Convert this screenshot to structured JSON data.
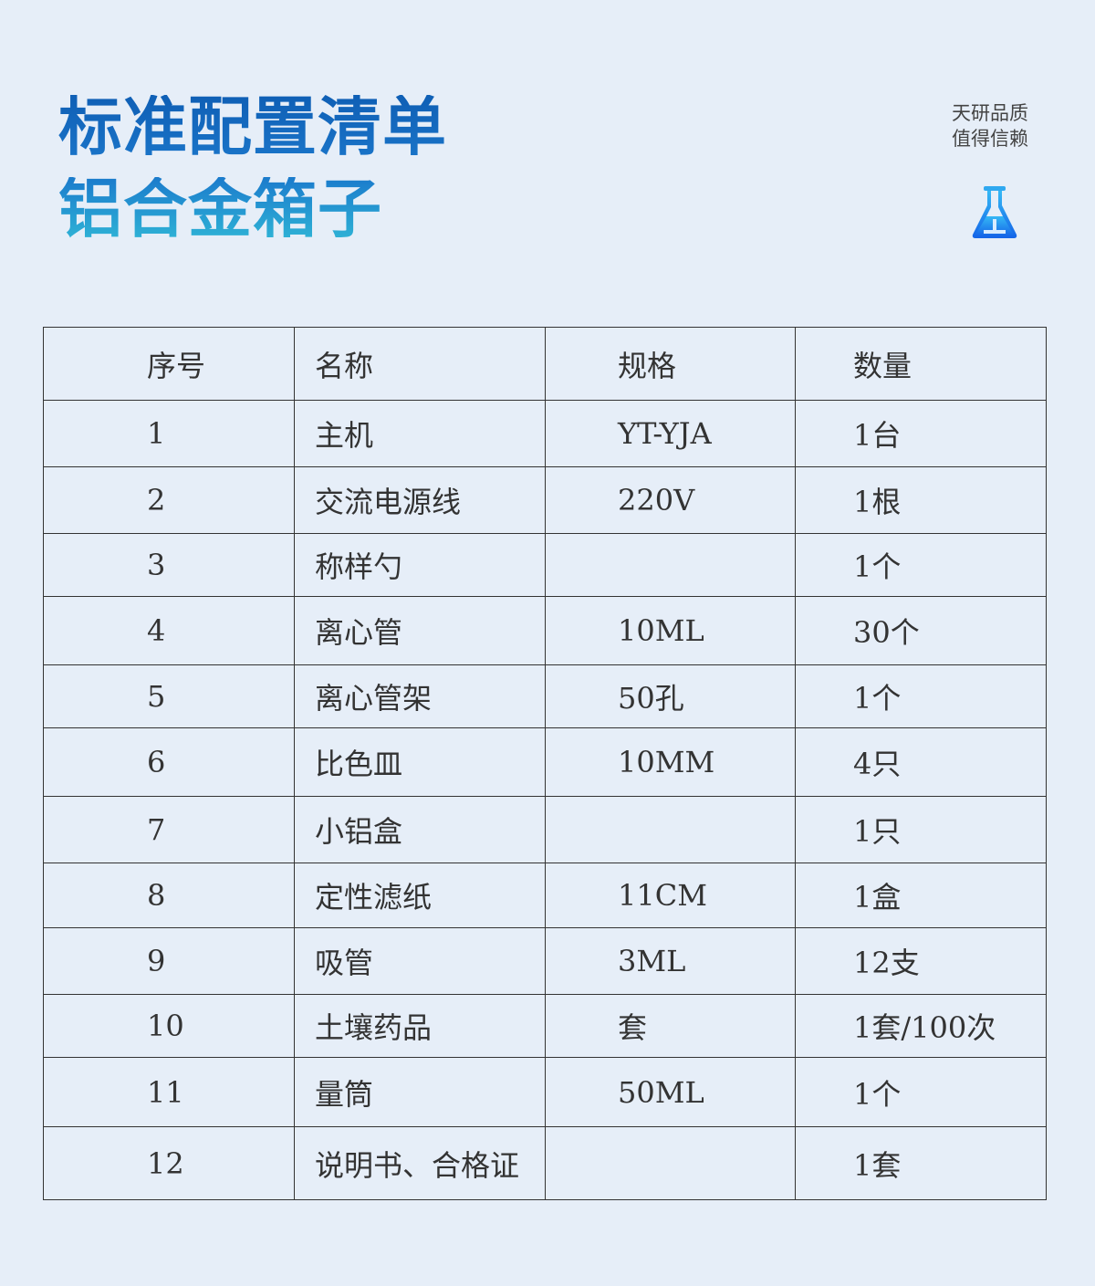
{
  "title": {
    "line1": "标准配置清单",
    "line2": "铝合金箱子"
  },
  "slogan": {
    "line1": "天研品质",
    "line2": "值得信赖"
  },
  "icon": "flask-icon",
  "colors": {
    "background": "#e6eef8",
    "title_top": "#0f5fb5",
    "title_bottom": "#2fb3d6",
    "icon": "#1e88f0"
  },
  "table": {
    "headers": [
      "序号",
      "名称",
      "规格",
      "数量"
    ],
    "rows": [
      [
        "1",
        "主机",
        "YT-YJA",
        "1台"
      ],
      [
        "2",
        "交流电源线",
        "220V",
        "1根"
      ],
      [
        "3",
        "称样勺",
        "",
        "1个"
      ],
      [
        "4",
        "离心管",
        "10ML",
        "30个"
      ],
      [
        "5",
        "离心管架",
        "50孔",
        "1个"
      ],
      [
        "6",
        "比色皿",
        "10MM",
        "4只"
      ],
      [
        "7",
        "小铝盒",
        "",
        "1只"
      ],
      [
        "8",
        "定性滤纸",
        "11CM",
        "1盒"
      ],
      [
        "9",
        "吸管",
        "3ML",
        "12支"
      ],
      [
        "10",
        "土壤药品",
        "套",
        "1套/100次"
      ],
      [
        "11",
        "量筒",
        "50ML",
        "1个"
      ],
      [
        "12",
        "说明书、合格证",
        "",
        "1套"
      ]
    ]
  }
}
